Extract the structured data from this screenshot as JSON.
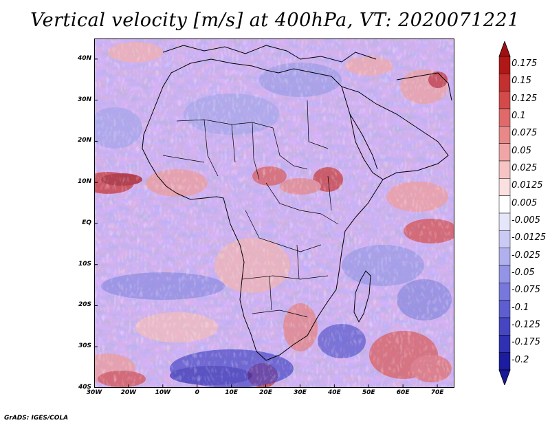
{
  "title": "Vertical velocity [m/s] at 400hPa, VT: 2020071221",
  "credit": "GrADS: IGES/COLA",
  "map": {
    "projection": "lat-lon",
    "lon_range": [
      -30,
      75
    ],
    "lat_range": [
      -40,
      45
    ],
    "lat_ticks": [
      {
        "value": 40,
        "label": "40N"
      },
      {
        "value": 30,
        "label": "30N"
      },
      {
        "value": 20,
        "label": "20N"
      },
      {
        "value": 10,
        "label": "10N"
      },
      {
        "value": 0,
        "label": "EQ"
      },
      {
        "value": -10,
        "label": "10S"
      },
      {
        "value": -20,
        "label": "20S"
      },
      {
        "value": -30,
        "label": "30S"
      },
      {
        "value": -40,
        "label": "40S"
      }
    ],
    "lon_ticks": [
      {
        "value": -30,
        "label": "30W"
      },
      {
        "value": -20,
        "label": "20W"
      },
      {
        "value": -10,
        "label": "10W"
      },
      {
        "value": 0,
        "label": "0"
      },
      {
        "value": 10,
        "label": "10E"
      },
      {
        "value": 20,
        "label": "20E"
      },
      {
        "value": 30,
        "label": "30E"
      },
      {
        "value": 40,
        "label": "40E"
      },
      {
        "value": 50,
        "label": "50E"
      },
      {
        "value": 60,
        "label": "60E"
      },
      {
        "value": 70,
        "label": "70E"
      }
    ]
  },
  "colorbar": {
    "levels": [
      {
        "label": "0.175",
        "color": "#b01818"
      },
      {
        "label": "0.15",
        "color": "#c43030"
      },
      {
        "label": "0.125",
        "color": "#d44a4a"
      },
      {
        "label": "0.1",
        "color": "#e06a6a"
      },
      {
        "label": "0.075",
        "color": "#e88888"
      },
      {
        "label": "0.05",
        "color": "#f0a6a6"
      },
      {
        "label": "0.025",
        "color": "#f6c4c4"
      },
      {
        "label": "0.0125",
        "color": "#fae0e0"
      },
      {
        "label": "0.005",
        "color": "#ffffff"
      },
      {
        "label": "-0.005",
        "color": "#e6e6fa"
      },
      {
        "label": "-0.0125",
        "color": "#cacaf4"
      },
      {
        "label": "-0.025",
        "color": "#b0b0ee"
      },
      {
        "label": "-0.05",
        "color": "#9494e6"
      },
      {
        "label": "-0.075",
        "color": "#7878dc"
      },
      {
        "label": "-0.1",
        "color": "#5e5ed0"
      },
      {
        "label": "-0.125",
        "color": "#4646c2"
      },
      {
        "label": "-0.175",
        "color": "#3030b2"
      },
      {
        "label": "-0.2",
        "color": "#1c1ca0"
      }
    ],
    "top_extend_color": "#a01010",
    "bottom_extend_color": "#18189a"
  }
}
